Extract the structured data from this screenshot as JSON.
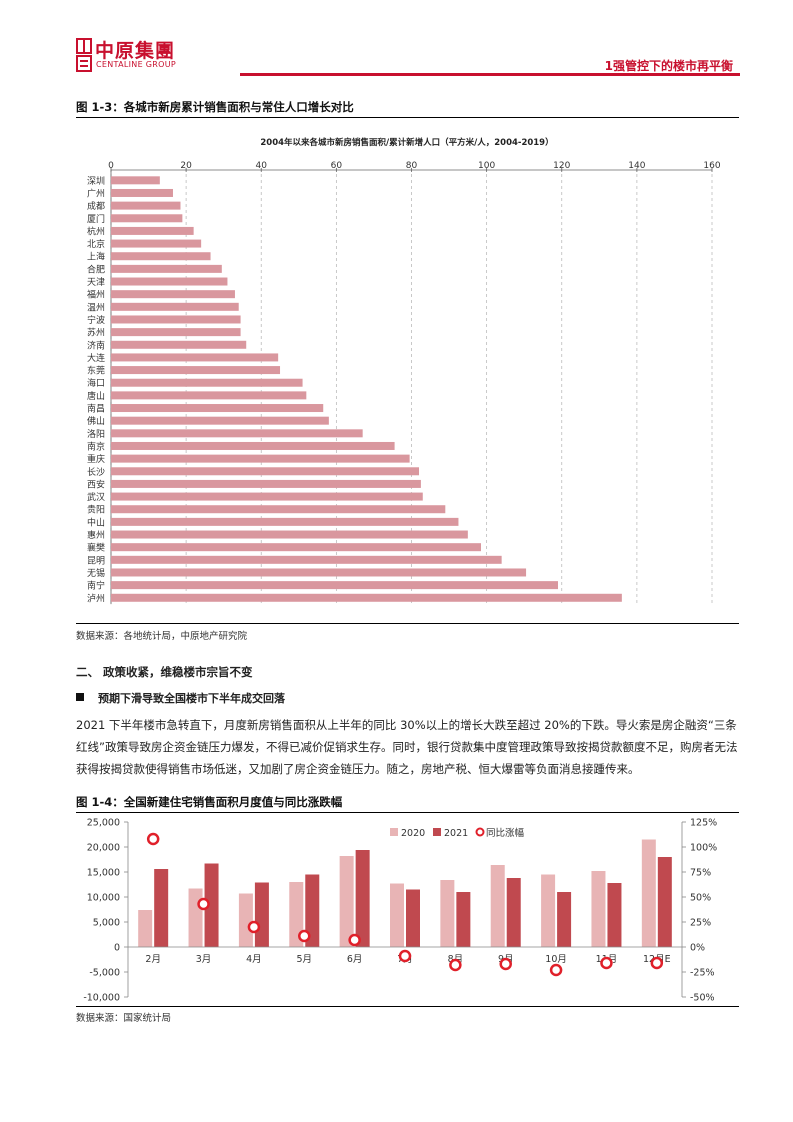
{
  "header": {
    "logo_cn": "中原集團",
    "logo_en": "CENTALINE GROUP",
    "report_title": "1强管控下的楼市再平衡"
  },
  "figure1": {
    "label": "图 1-3：各城市新房累计销售面积与常住人口增长对比",
    "source": "数据来源：各地统计局，中原地产研究院"
  },
  "figure2": {
    "label": "图 1-4：全国新建住宅销售面积月度值与同比涨跌幅",
    "source": "数据来源：国家统计局"
  },
  "section": {
    "heading": "二、 政策收紧，维稳楼市宗旨不变",
    "subheading": "预期下滑导致全国楼市下半年成交回落",
    "paragraph": "2021 下半年楼市急转直下，月度新房销售面积从上半年的同比 30%以上的增长大跌至超过 20%的下跌。导火索是房企融资“三条红线”政策导致房企资金链压力爆发，不得已减价促销求生存。同时，银行贷款集中度管理政策导致按揭贷款额度不足，购房者无法获得按揭贷款使得销售市场低迷，又加剧了房企资金链压力。随之，房地产税、恒大爆雷等负面消息接踵传来。"
  },
  "chart_data": [
    {
      "type": "bar",
      "orientation": "horizontal",
      "title": "2004年以来各城市新房销售面积/累计新增人口（平方米/人，2004-2019）",
      "xlim": [
        0,
        160
      ],
      "xticks": [
        0,
        20,
        40,
        60,
        80,
        100,
        120,
        140,
        160
      ],
      "grid": true,
      "color": "#d9979e",
      "categories": [
        "深圳",
        "广州",
        "成都",
        "厦门",
        "杭州",
        "北京",
        "上海",
        "合肥",
        "天津",
        "福州",
        "温州",
        "宁波",
        "苏州",
        "济南",
        "大连",
        "东莞",
        "海口",
        "唐山",
        "南昌",
        "佛山",
        "洛阳",
        "南京",
        "重庆",
        "长沙",
        "西安",
        "武汉",
        "贵阳",
        "中山",
        "惠州",
        "襄樊",
        "昆明",
        "无锡",
        "南宁",
        "泸州"
      ],
      "values": [
        13,
        16.5,
        18.5,
        19,
        22,
        24,
        26.5,
        29.5,
        31,
        33,
        34,
        34.5,
        34.5,
        36,
        44.5,
        45,
        51,
        52,
        56.5,
        58,
        67,
        75.5,
        79.5,
        82,
        82.5,
        83,
        89,
        92.5,
        95,
        98.5,
        104,
        110.5,
        119,
        136
      ]
    },
    {
      "type": "bar",
      "title": "",
      "categories": [
        "2月",
        "3月",
        "4月",
        "5月",
        "6月",
        "7月",
        "8月",
        "9月",
        "10月",
        "11月",
        "12月E"
      ],
      "ylim": [
        -10000,
        25000
      ],
      "yticks": [
        "-10,000",
        "-5,000",
        "0",
        "5,000",
        "10,000",
        "15,000",
        "20,000",
        "25,000"
      ],
      "y2lim": [
        -50,
        125
      ],
      "y2ticks": [
        "-50%",
        "-25%",
        "0%",
        "25%",
        "50%",
        "75%",
        "100%",
        "125%"
      ],
      "legend": [
        "2020",
        "2021",
        "同比涨幅"
      ],
      "legend_position": "top-right",
      "series": [
        {
          "name": "2020",
          "color": "#e8b4b5",
          "values": [
            7400,
            11700,
            10700,
            13000,
            18200,
            12700,
            13400,
            16400,
            14500,
            15200,
            21500
          ]
        },
        {
          "name": "2021",
          "color": "#c0494f",
          "values": [
            15600,
            16700,
            12900,
            14500,
            19400,
            11500,
            11000,
            13800,
            11000,
            12800,
            18000
          ]
        },
        {
          "name": "同比涨幅",
          "type": "scatter",
          "axis": "right",
          "color": "#e0202a",
          "values": [
            108,
            43,
            20,
            11,
            7,
            -9,
            -18,
            -17,
            -23,
            -16,
            -16
          ]
        }
      ]
    }
  ]
}
